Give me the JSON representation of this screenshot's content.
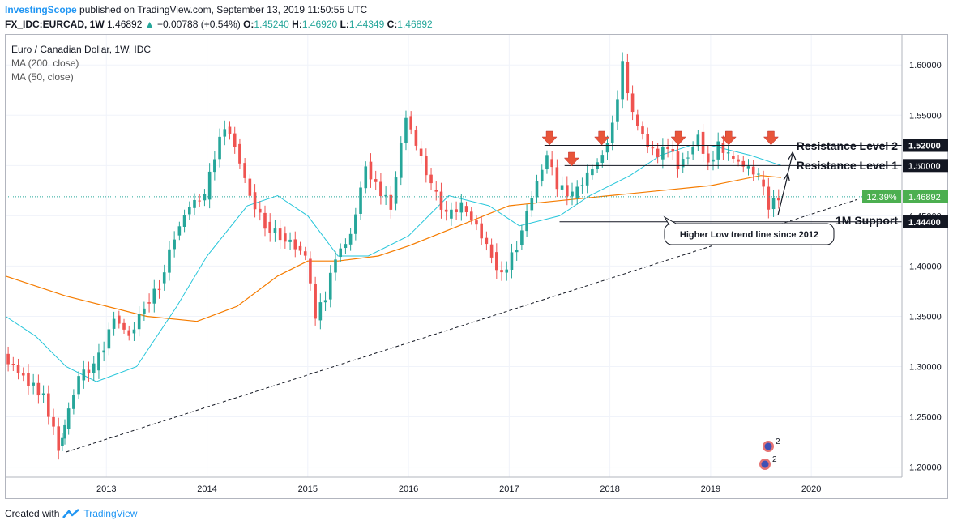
{
  "header": {
    "publisher": "InvestingScope",
    "published_text": "published on TradingView.com, September 13, 2019 11:50:55 UTC",
    "symbol": "FX_IDC:EURCAD, 1W",
    "last": "1.46892",
    "change_arrow": "▲",
    "change": "+0.00788 (+0.54%)",
    "open_label": "O:",
    "open": "1.45240",
    "high_label": "H:",
    "high": "1.46920",
    "low_label": "L:",
    "low": "1.44349",
    "close_label": "C:",
    "close": "1.46892"
  },
  "legend": {
    "title": "Euro / Canadian Dollar, 1W, IDC",
    "ma200": "MA (200, close)",
    "ma50": "MA (50, close)"
  },
  "footer": {
    "created_with": "Created with",
    "brand": "TradingView"
  },
  "colors": {
    "up": "#26a69a",
    "down": "#ef5350",
    "ma200": "#f57c00",
    "ma50": "#26c6da",
    "arrow": "#e8553a",
    "label_bg": "#4caf50"
  },
  "chart_data": {
    "type": "line",
    "title": "Euro / Canadian Dollar, 1W, IDC",
    "x_ticks": [
      "2013",
      "2014",
      "2015",
      "2016",
      "2017",
      "2018",
      "2019",
      "2020"
    ],
    "y_ticks": [
      "1.20000",
      "1.25000",
      "1.30000",
      "1.35000",
      "1.40000",
      "1.45000",
      "1.50000",
      "1.55000",
      "1.60000"
    ],
    "ylim": [
      1.19,
      1.63
    ],
    "xlim": [
      2012.0,
      2020.9
    ],
    "series": [
      {
        "name": "EURCAD weekly close (approx.)",
        "x": [
          2012.0,
          2012.2,
          2012.4,
          2012.55,
          2012.6,
          2012.75,
          2012.9,
          2013.0,
          2013.1,
          2013.25,
          2013.4,
          2013.55,
          2013.7,
          2013.85,
          2014.0,
          2014.1,
          2014.2,
          2014.3,
          2014.45,
          2014.6,
          2014.75,
          2014.9,
          2015.0,
          2015.1,
          2015.2,
          2015.3,
          2015.45,
          2015.6,
          2015.7,
          2015.85,
          2016.0,
          2016.1,
          2016.25,
          2016.4,
          2016.55,
          2016.7,
          2016.85,
          2016.95,
          2017.1,
          2017.25,
          2017.4,
          2017.5,
          2017.65,
          2017.8,
          2017.95,
          2018.05,
          2018.15,
          2018.25,
          2018.4,
          2018.5,
          2018.6,
          2018.7,
          2018.8,
          2018.9,
          2019.0,
          2019.1,
          2019.2,
          2019.35,
          2019.5,
          2019.6,
          2019.7
        ],
        "values": [
          1.31,
          1.29,
          1.27,
          1.22,
          1.24,
          1.29,
          1.3,
          1.32,
          1.35,
          1.33,
          1.36,
          1.38,
          1.43,
          1.46,
          1.47,
          1.51,
          1.54,
          1.52,
          1.47,
          1.44,
          1.43,
          1.42,
          1.41,
          1.35,
          1.37,
          1.41,
          1.43,
          1.5,
          1.48,
          1.46,
          1.55,
          1.52,
          1.48,
          1.45,
          1.46,
          1.44,
          1.41,
          1.39,
          1.42,
          1.47,
          1.51,
          1.48,
          1.47,
          1.49,
          1.51,
          1.54,
          1.6,
          1.55,
          1.52,
          1.51,
          1.52,
          1.5,
          1.51,
          1.53,
          1.5,
          1.52,
          1.51,
          1.5,
          1.49,
          1.46,
          1.469
        ]
      },
      {
        "name": "MA (200, close)",
        "x": [
          2012.0,
          2012.6,
          2013.0,
          2013.4,
          2013.9,
          2014.3,
          2014.7,
          2015.0,
          2015.3,
          2015.7,
          2016.0,
          2016.5,
          2017.0,
          2017.5,
          2018.0,
          2018.5,
          2019.0,
          2019.5,
          2019.7
        ],
        "values": [
          1.39,
          1.37,
          1.36,
          1.35,
          1.345,
          1.36,
          1.39,
          1.405,
          1.405,
          1.41,
          1.42,
          1.44,
          1.46,
          1.465,
          1.47,
          1.475,
          1.48,
          1.49,
          1.488
        ]
      },
      {
        "name": "MA (50, close)",
        "x": [
          2012.0,
          2012.3,
          2012.6,
          2012.9,
          2013.3,
          2013.7,
          2014.0,
          2014.4,
          2014.7,
          2015.0,
          2015.3,
          2015.6,
          2016.0,
          2016.4,
          2016.8,
          2017.1,
          2017.5,
          2017.8,
          2018.2,
          2018.5,
          2018.8,
          2019.0,
          2019.4,
          2019.7
        ],
        "values": [
          1.35,
          1.33,
          1.3,
          1.285,
          1.3,
          1.36,
          1.41,
          1.46,
          1.47,
          1.45,
          1.41,
          1.41,
          1.43,
          1.47,
          1.46,
          1.44,
          1.45,
          1.47,
          1.49,
          1.51,
          1.52,
          1.52,
          1.51,
          1.5
        ]
      }
    ],
    "price_labels": [
      {
        "text": "1.52000",
        "value": 1.52
      },
      {
        "text": "1.50000",
        "value": 1.5
      },
      {
        "text": "1.44400",
        "value": 1.444
      }
    ],
    "current_price": {
      "value": 1.46892,
      "text": "1.46892",
      "pct": "12.39%"
    },
    "annotations": {
      "resistance2": "Resistance Level 2",
      "resistance1": "Resistance Level 1",
      "support": "1M Support",
      "trendline": "Higher Low trend line since 2012"
    },
    "events_badge": "2",
    "resistance_arrows_x": [
      2017.4,
      2017.62,
      2017.92,
      2018.68,
      2019.18,
      2019.6
    ],
    "trendline": {
      "x": [
        2012.6,
        2020.45
      ],
      "values": [
        1.215,
        1.466
      ]
    }
  }
}
